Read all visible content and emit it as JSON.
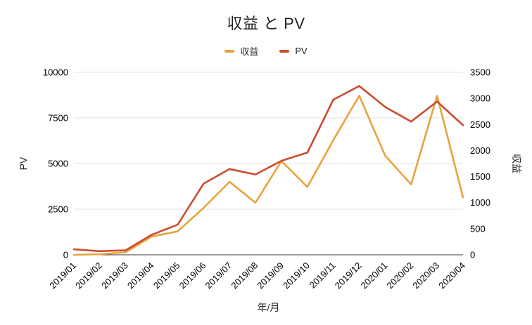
{
  "title": "収益 と PV",
  "chart_data": {
    "type": "line",
    "categories": [
      "2019/01",
      "2019/02",
      "2019/03",
      "2019/04",
      "2019/05",
      "2019/06",
      "2019/07",
      "2019/08",
      "2019/09",
      "2019/10",
      "2019/11",
      "2019/12",
      "2020/01",
      "2020/02",
      "2020/03",
      "2020/04"
    ],
    "series": [
      {
        "name": "収益",
        "axis": "right",
        "color": "#E8A33C",
        "values": [
          0,
          10,
          50,
          350,
          450,
          900,
          1400,
          1000,
          1800,
          1300,
          2200,
          3050,
          1900,
          1350,
          3050,
          1100
        ]
      },
      {
        "name": "PV",
        "axis": "left",
        "color": "#CC4B2E",
        "values": [
          300,
          200,
          250,
          1100,
          1650,
          3900,
          4700,
          4400,
          5150,
          5600,
          8500,
          9250,
          8100,
          7300,
          8400,
          7100
        ]
      }
    ],
    "left_axis": {
      "label": "PV",
      "ticks": [
        0,
        2500,
        5000,
        7500,
        10000
      ],
      "range": [
        0,
        10000
      ]
    },
    "right_axis": {
      "label": "収益",
      "ticks": [
        0,
        500,
        1000,
        1500,
        2000,
        2500,
        3000,
        3500
      ],
      "range": [
        0,
        3500
      ]
    },
    "xlabel": "年/月",
    "grid": true,
    "legend_position": "top",
    "colors": {
      "gridline": "#E0E0E0",
      "axis_line": "#333333",
      "tick_text": "#000000"
    }
  }
}
